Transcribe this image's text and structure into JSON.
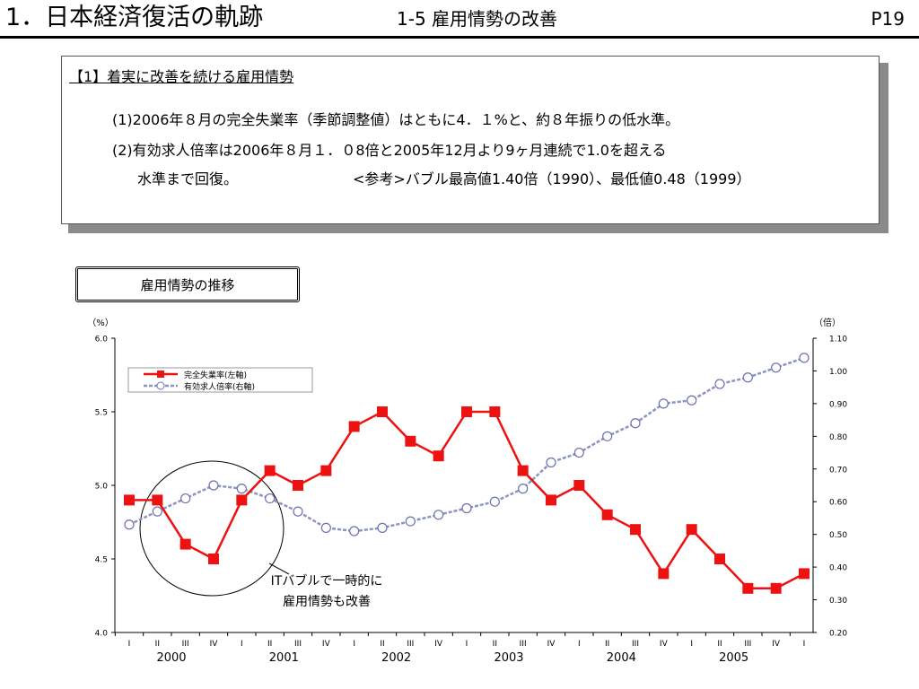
{
  "header": {
    "title": "1．日本経済復活の軌跡",
    "subtitle": "1-5  雇用情勢の改善",
    "page": "P19"
  },
  "summary": {
    "heading": "【1】着実に改善を続ける雇用情勢",
    "line1": "(1)2006年８月の完全失業率（季節調整値）はともに4．１%と、約８年振りの低水準。",
    "line2": "(2)有効求人倍率は2006年８月１．０8倍と2005年12月より9ヶ月連続で1.0を超える",
    "line3": "水準まで回復。",
    "line3_ref": "<参考>バブル最高値1.40倍（1990）、最低値0.48（1999）"
  },
  "section_label": "雇用情勢の推移",
  "chart_data": {
    "type": "line",
    "y_left_label": "（%）",
    "y_right_label": "（倍）",
    "ylim_left": [
      4.0,
      6.0
    ],
    "ylim_right": [
      0.2,
      1.1
    ],
    "y_left_ticks": [
      "4.0",
      "4.5",
      "5.0",
      "5.5",
      "6.0"
    ],
    "y_right_ticks": [
      "0.20",
      "0.30",
      "0.40",
      "0.50",
      "0.60",
      "0.70",
      "0.80",
      "0.90",
      "1.00",
      "1.10"
    ],
    "quarters": [
      "I",
      "II",
      "III",
      "IV",
      "I",
      "II",
      "III",
      "IV",
      "I",
      "II",
      "III",
      "IV",
      "I",
      "II",
      "III",
      "IV",
      "I",
      "II",
      "III",
      "IV",
      "I",
      "II",
      "III",
      "IV",
      "I"
    ],
    "years": [
      "2000",
      "2001",
      "2002",
      "2003",
      "2004",
      "2005"
    ],
    "legend_placement": "top-left",
    "grid": false,
    "series": [
      {
        "name": "完全失業率(左軸)",
        "axis": "left",
        "color": "#ee1111",
        "marker": "square",
        "values": [
          4.9,
          4.9,
          4.6,
          4.5,
          4.9,
          5.1,
          5.0,
          5.1,
          5.4,
          5.5,
          5.3,
          5.2,
          5.5,
          5.5,
          5.1,
          4.9,
          5.0,
          4.8,
          4.7,
          4.4,
          4.7,
          4.5,
          4.3,
          4.3,
          4.4
        ]
      },
      {
        "name": "有効求人倍率(右軸)",
        "axis": "right",
        "color": "#8c94c4",
        "marker": "circle",
        "values": [
          0.53,
          0.57,
          0.61,
          0.65,
          0.64,
          0.61,
          0.57,
          0.52,
          0.51,
          0.52,
          0.54,
          0.56,
          0.58,
          0.6,
          0.64,
          0.72,
          0.75,
          0.8,
          0.84,
          0.9,
          0.91,
          0.96,
          0.98,
          1.01,
          1.04
        ]
      }
    ],
    "annotation": {
      "line1": "ITバブルで一時的に",
      "line2": "雇用情勢も改善"
    }
  }
}
